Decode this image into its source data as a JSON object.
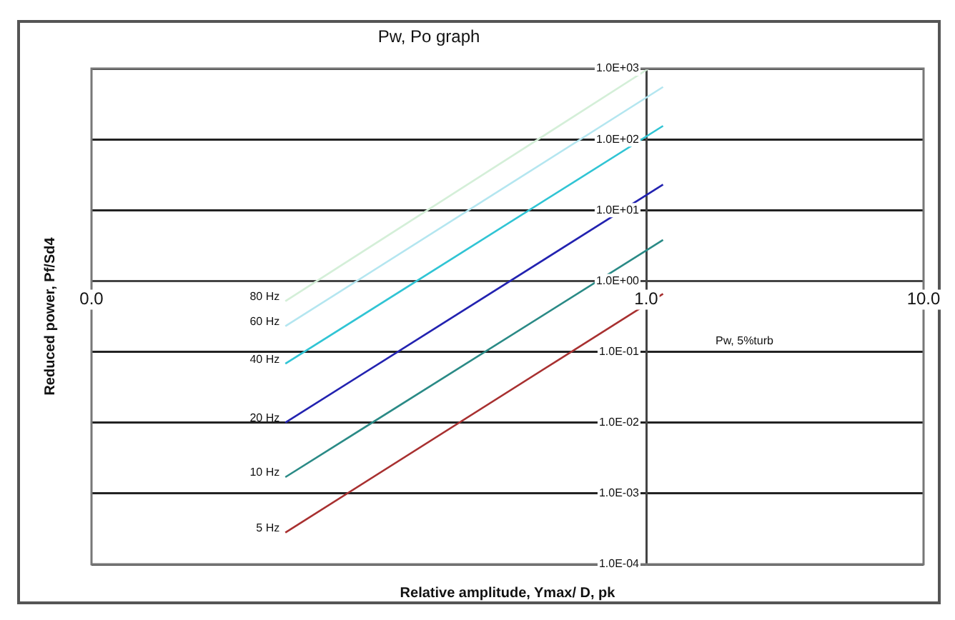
{
  "chart_data": {
    "type": "line",
    "title": "Pw, Po graph",
    "xlabel": "Relative amplitude, Ymax/ D, pk",
    "ylabel": "Reduced power, Pf/Sd4",
    "log": "xy",
    "grid": "y",
    "legend": false,
    "marker": "none",
    "line_style": "solid",
    "xlim": [
      0.01,
      10
    ],
    "xticks": [
      {
        "value": 0.01,
        "label": "0.0"
      },
      {
        "value": 1,
        "label": "1.0"
      },
      {
        "value": 10,
        "label": "10.0"
      }
    ],
    "ylim": [
      0.0001,
      1000
    ],
    "yticks": [
      {
        "value": 1000,
        "label": "1.0E+03"
      },
      {
        "value": 100,
        "label": "1.0E+02"
      },
      {
        "value": 10,
        "label": "1.0E+01"
      },
      {
        "value": 1,
        "label": "1.0E+00"
      },
      {
        "value": 0.1,
        "label": "1.0E-01"
      },
      {
        "value": 0.01,
        "label": "1.0E-02"
      },
      {
        "value": 0.001,
        "label": "1.0E-03"
      },
      {
        "value": 0.0001,
        "label": "1.0E-04"
      }
    ],
    "series": [
      {
        "name": "80 Hz",
        "color": "#d4efd8",
        "x": [
          0.05,
          1.02
        ],
        "values": [
          0.52,
          1000
        ]
      },
      {
        "name": "60 Hz",
        "color": "#b4e6f0",
        "x": [
          0.05,
          1.15
        ],
        "values": [
          0.23,
          550
        ]
      },
      {
        "name": "40 Hz",
        "color": "#30c4d4",
        "x": [
          0.05,
          1.15
        ],
        "values": [
          0.068,
          155
        ]
      },
      {
        "name": "20 Hz",
        "color": "#2222b0",
        "x": [
          0.05,
          1.15
        ],
        "values": [
          0.01,
          23
        ]
      },
      {
        "name": "10 Hz",
        "color": "#2a8a86",
        "x": [
          0.05,
          1.15
        ],
        "values": [
          0.0017,
          3.8
        ]
      },
      {
        "name": "5 Hz",
        "color": "#a83030",
        "x": [
          0.05,
          1.15
        ],
        "values": [
          0.00028,
          0.66
        ]
      }
    ],
    "annotations": [
      "Pw, 5%turb"
    ]
  }
}
